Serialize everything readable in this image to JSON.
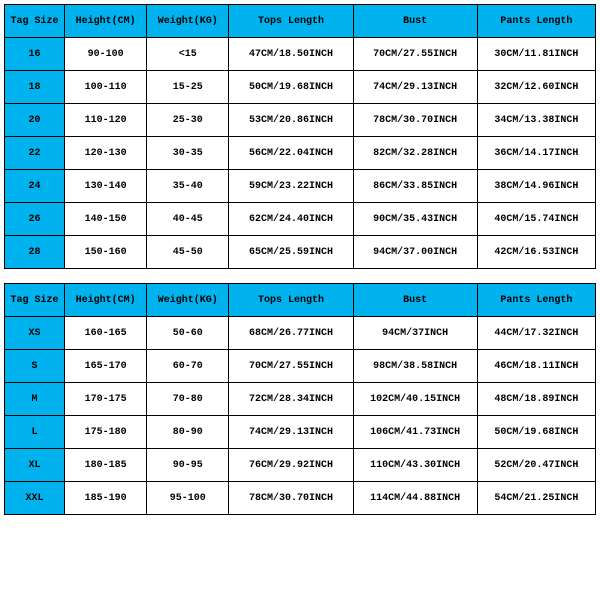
{
  "header_bg": "#00b2ee",
  "cell_bg": "#ffffff",
  "border_color": "#000000",
  "font_family": "Courier New",
  "tables": [
    {
      "columns": [
        "Tag Size",
        "Height(CM)",
        "Weight(KG)",
        "Tops Length",
        "Bust",
        "Pants Length"
      ],
      "rows": [
        [
          "16",
          "90-100",
          "<15",
          "47CM/18.50INCH",
          "70CM/27.55INCH",
          "30CM/11.81INCH"
        ],
        [
          "18",
          "100-110",
          "15-25",
          "50CM/19.68INCH",
          "74CM/29.13INCH",
          "32CM/12.60INCH"
        ],
        [
          "20",
          "110-120",
          "25-30",
          "53CM/20.86INCH",
          "78CM/30.70INCH",
          "34CM/13.38INCH"
        ],
        [
          "22",
          "120-130",
          "30-35",
          "56CM/22.04INCH",
          "82CM/32.28INCH",
          "36CM/14.17INCH"
        ],
        [
          "24",
          "130-140",
          "35-40",
          "59CM/23.22INCH",
          "86CM/33.85INCH",
          "38CM/14.96INCH"
        ],
        [
          "26",
          "140-150",
          "40-45",
          "62CM/24.40INCH",
          "90CM/35.43INCH",
          "40CM/15.74INCH"
        ],
        [
          "28",
          "150-160",
          "45-50",
          "65CM/25.59INCH",
          "94CM/37.00INCH",
          "42CM/16.53INCH"
        ]
      ]
    },
    {
      "columns": [
        "Tag Size",
        "Height(CM)",
        "Weight(KG)",
        "Tops Length",
        "Bust",
        "Pants Length"
      ],
      "rows": [
        [
          "XS",
          "160-165",
          "50-60",
          "68CM/26.77INCH",
          "94CM/37INCH",
          "44CM/17.32INCH"
        ],
        [
          "S",
          "165-170",
          "60-70",
          "70CM/27.55INCH",
          "98CM/38.58INCH",
          "46CM/18.11INCH"
        ],
        [
          "M",
          "170-175",
          "70-80",
          "72CM/28.34INCH",
          "102CM/40.15INCH",
          "48CM/18.89INCH"
        ],
        [
          "L",
          "175-180",
          "80-90",
          "74CM/29.13INCH",
          "106CM/41.73INCH",
          "50CM/19.68INCH"
        ],
        [
          "XL",
          "180-185",
          "90-95",
          "76CM/29.92INCH",
          "110CM/43.30INCH",
          "52CM/20.47INCH"
        ],
        [
          "XXL",
          "185-190",
          "95-100",
          "78CM/30.70INCH",
          "114CM/44.88INCH",
          "54CM/21.25INCH"
        ]
      ]
    }
  ]
}
